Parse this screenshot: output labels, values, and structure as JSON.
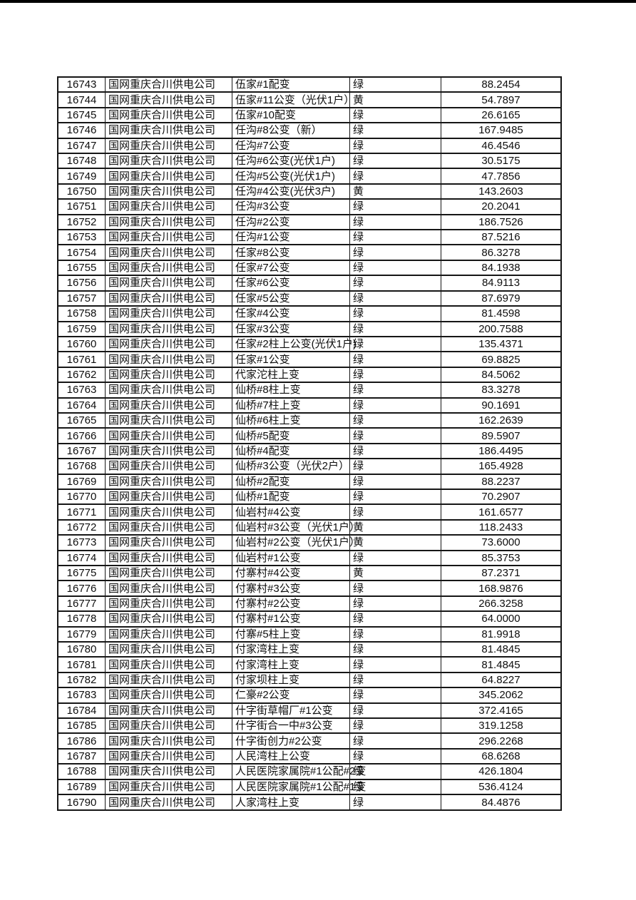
{
  "page": {
    "background_color": "#ffffff",
    "top_edge_bar_color": "#000000"
  },
  "table": {
    "row_count": 48,
    "status_green_label": "绿",
    "status_yellow_label": "黄",
    "rows": [
      {
        "id": "16743",
        "company": "国网重庆合川供电公司",
        "name": "伍家#1配变",
        "status": "绿",
        "value": "88.2454"
      },
      {
        "id": "16744",
        "company": "国网重庆合川供电公司",
        "name": "伍家#11公变（光伏1户）",
        "status": "黄",
        "value": "54.7897"
      },
      {
        "id": "16745",
        "company": "国网重庆合川供电公司",
        "name": "伍家#10配变",
        "status": "绿",
        "value": "26.6165"
      },
      {
        "id": "16746",
        "company": "国网重庆合川供电公司",
        "name": "任沟#8公变（新）",
        "status": "绿",
        "value": "167.9485"
      },
      {
        "id": "16747",
        "company": "国网重庆合川供电公司",
        "name": "任沟#7公变",
        "status": "绿",
        "value": "46.4546"
      },
      {
        "id": "16748",
        "company": "国网重庆合川供电公司",
        "name": "任沟#6公变(光伏1户)",
        "status": "绿",
        "value": "30.5175"
      },
      {
        "id": "16749",
        "company": "国网重庆合川供电公司",
        "name": "任沟#5公变(光伏1户)",
        "status": "绿",
        "value": "47.7856"
      },
      {
        "id": "16750",
        "company": "国网重庆合川供电公司",
        "name": "任沟#4公变(光伏3户)",
        "status": "黄",
        "value": "143.2603"
      },
      {
        "id": "16751",
        "company": "国网重庆合川供电公司",
        "name": "任沟#3公变",
        "status": "绿",
        "value": "20.2041"
      },
      {
        "id": "16752",
        "company": "国网重庆合川供电公司",
        "name": "任沟#2公变",
        "status": "绿",
        "value": "186.7526"
      },
      {
        "id": "16753",
        "company": "国网重庆合川供电公司",
        "name": "任沟#1公变",
        "status": "绿",
        "value": "87.5216"
      },
      {
        "id": "16754",
        "company": "国网重庆合川供电公司",
        "name": "任家#8公变",
        "status": "绿",
        "value": "86.3278"
      },
      {
        "id": "16755",
        "company": "国网重庆合川供电公司",
        "name": "任家#7公变",
        "status": "绿",
        "value": "84.1938"
      },
      {
        "id": "16756",
        "company": "国网重庆合川供电公司",
        "name": "任家#6公变",
        "status": "绿",
        "value": "84.9113"
      },
      {
        "id": "16757",
        "company": "国网重庆合川供电公司",
        "name": "任家#5公变",
        "status": "绿",
        "value": "87.6979"
      },
      {
        "id": "16758",
        "company": "国网重庆合川供电公司",
        "name": "任家#4公变",
        "status": "绿",
        "value": "81.4598"
      },
      {
        "id": "16759",
        "company": "国网重庆合川供电公司",
        "name": "任家#3公变",
        "status": "绿",
        "value": "200.7588"
      },
      {
        "id": "16760",
        "company": "国网重庆合川供电公司",
        "name": "任家#2柱上公变(光伏1户)",
        "status": "绿",
        "value": "135.4371"
      },
      {
        "id": "16761",
        "company": "国网重庆合川供电公司",
        "name": "任家#1公变",
        "status": "绿",
        "value": "69.8825"
      },
      {
        "id": "16762",
        "company": "国网重庆合川供电公司",
        "name": "代家沱柱上变",
        "status": "绿",
        "value": "84.5062"
      },
      {
        "id": "16763",
        "company": "国网重庆合川供电公司",
        "name": "仙桥#8柱上变",
        "status": "绿",
        "value": "83.3278"
      },
      {
        "id": "16764",
        "company": "国网重庆合川供电公司",
        "name": "仙桥#7柱上变",
        "status": "绿",
        "value": "90.1691"
      },
      {
        "id": "16765",
        "company": "国网重庆合川供电公司",
        "name": "仙桥#6柱上变",
        "status": "绿",
        "value": "162.2639"
      },
      {
        "id": "16766",
        "company": "国网重庆合川供电公司",
        "name": "仙桥#5配变",
        "status": "绿",
        "value": "89.5907"
      },
      {
        "id": "16767",
        "company": "国网重庆合川供电公司",
        "name": "仙桥#4配变",
        "status": "绿",
        "value": "186.4495"
      },
      {
        "id": "16768",
        "company": "国网重庆合川供电公司",
        "name": "仙桥#3公变（光伏2户）",
        "status": "绿",
        "value": "165.4928"
      },
      {
        "id": "16769",
        "company": "国网重庆合川供电公司",
        "name": "仙桥#2配变",
        "status": "绿",
        "value": "88.2237"
      },
      {
        "id": "16770",
        "company": "国网重庆合川供电公司",
        "name": "仙桥#1配变",
        "status": "绿",
        "value": "70.2907"
      },
      {
        "id": "16771",
        "company": "国网重庆合川供电公司",
        "name": "仙岩村#4公变",
        "status": "绿",
        "value": "161.6577"
      },
      {
        "id": "16772",
        "company": "国网重庆合川供电公司",
        "name": "仙岩村#3公变（光伏1户）",
        "status": "黄",
        "value": "118.2433"
      },
      {
        "id": "16773",
        "company": "国网重庆合川供电公司",
        "name": "仙岩村#2公变（光伏1户）",
        "status": "黄",
        "value": "73.6000"
      },
      {
        "id": "16774",
        "company": "国网重庆合川供电公司",
        "name": "仙岩村#1公变",
        "status": "绿",
        "value": "85.3753"
      },
      {
        "id": "16775",
        "company": "国网重庆合川供电公司",
        "name": "付寨村#4公变",
        "status": "黄",
        "value": "87.2371"
      },
      {
        "id": "16776",
        "company": "国网重庆合川供电公司",
        "name": "付寨村#3公变",
        "status": "绿",
        "value": "168.9876"
      },
      {
        "id": "16777",
        "company": "国网重庆合川供电公司",
        "name": "付寨村#2公变",
        "status": "绿",
        "value": "266.3258"
      },
      {
        "id": "16778",
        "company": "国网重庆合川供电公司",
        "name": "付寨村#1公变",
        "status": "绿",
        "value": "64.0000"
      },
      {
        "id": "16779",
        "company": "国网重庆合川供电公司",
        "name": "付寨#5柱上变",
        "status": "绿",
        "value": "81.9918"
      },
      {
        "id": "16780",
        "company": "国网重庆合川供电公司",
        "name": "付家湾柱上变",
        "status": "绿",
        "value": "81.4845"
      },
      {
        "id": "16781",
        "company": "国网重庆合川供电公司",
        "name": "付家湾柱上变",
        "status": "绿",
        "value": "81.4845"
      },
      {
        "id": "16782",
        "company": "国网重庆合川供电公司",
        "name": "付家坝柱上变",
        "status": "绿",
        "value": "64.8227"
      },
      {
        "id": "16783",
        "company": "国网重庆合川供电公司",
        "name": "仁豪#2公变",
        "status": "绿",
        "value": "345.2062"
      },
      {
        "id": "16784",
        "company": "国网重庆合川供电公司",
        "name": "什字街草帽厂#1公变",
        "status": "绿",
        "value": "372.4165"
      },
      {
        "id": "16785",
        "company": "国网重庆合川供电公司",
        "name": "什字街合一中#3公变",
        "status": "绿",
        "value": "319.1258"
      },
      {
        "id": "16786",
        "company": "国网重庆合川供电公司",
        "name": "什字街创力#2公变",
        "status": "绿",
        "value": "296.2268"
      },
      {
        "id": "16787",
        "company": "国网重庆合川供电公司",
        "name": "人民湾柱上公变",
        "status": "绿",
        "value": "68.6268"
      },
      {
        "id": "16788",
        "company": "国网重庆合川供电公司",
        "name": "人民医院家属院#1公配#2变",
        "status": "绿",
        "value": "426.1804"
      },
      {
        "id": "16789",
        "company": "国网重庆合川供电公司",
        "name": "人民医院家属院#1公配#1变",
        "status": "绿",
        "value": "536.4124"
      },
      {
        "id": "16790",
        "company": "国网重庆合川供电公司",
        "name": "人家湾柱上变",
        "status": "绿",
        "value": "84.4876"
      }
    ]
  }
}
